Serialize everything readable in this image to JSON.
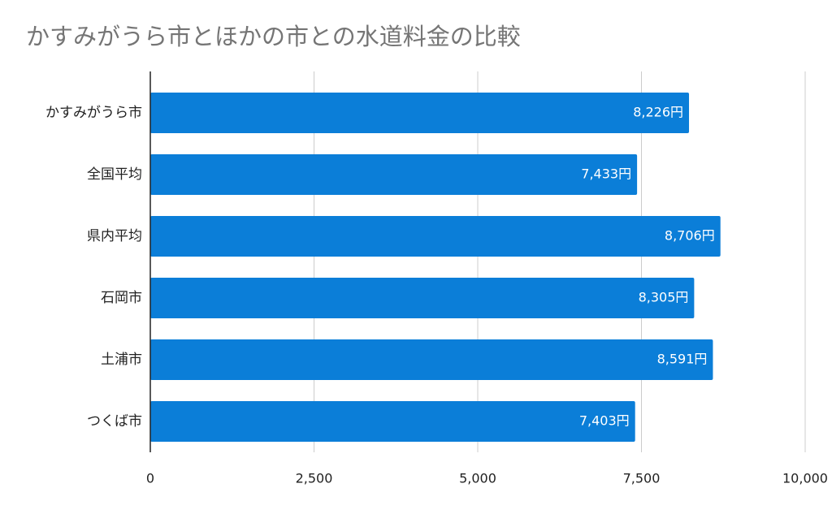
{
  "chart_data": {
    "type": "hbar",
    "title": "かすみがうら市とほかの市との水道料金の比較",
    "categories": [
      "かすみがうら市",
      "全国平均",
      "県内平均",
      "石岡市",
      "土浦市",
      "つくば市"
    ],
    "values": [
      8226,
      7433,
      8706,
      8305,
      8591,
      7403
    ],
    "value_labels": [
      "8,226円",
      "7,433円",
      "8,706円",
      "8,305円",
      "8,591円",
      "7,403円"
    ],
    "color": "#0b7ed8",
    "xlim": [
      0,
      10000
    ],
    "xticks": [
      0,
      {
        "value": 2500,
        "label": "2,500"
      },
      {
        "value": 5000,
        "label": "5,000"
      },
      {
        "value": 7500,
        "label": "7,500"
      },
      {
        "value": 10000,
        "label": "10,000"
      }
    ],
    "grid": true
  }
}
